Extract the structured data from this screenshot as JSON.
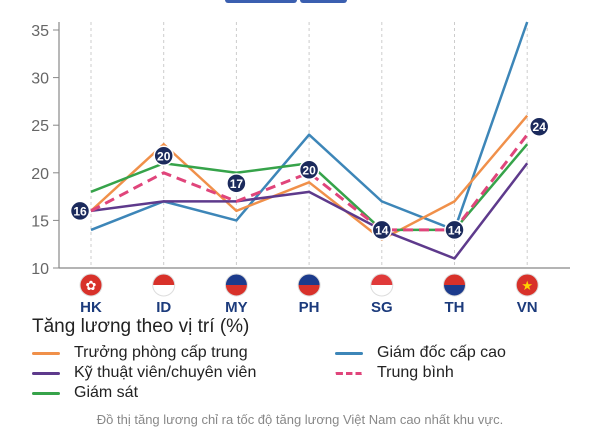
{
  "chart_data": {
    "type": "line",
    "categories": [
      "HK",
      "ID",
      "MY",
      "PH",
      "SG",
      "TH",
      "VN"
    ],
    "category_flags": [
      "hong-kong-flag-icon",
      "indonesia-flag-icon",
      "malaysia-flag-icon",
      "philippines-flag-icon",
      "singapore-flag-icon",
      "thailand-flag-icon",
      "vietnam-flag-icon"
    ],
    "ylim": [
      10,
      36
    ],
    "yticks": [
      10,
      15,
      20,
      25,
      30,
      35
    ],
    "grid": "vertical dashed",
    "legend_title": "Tăng lương theo vị trí (%)",
    "legend_placement": "bottom",
    "series": [
      {
        "name": "Trưởng phòng cấp trung",
        "color": "#f0904a",
        "style": "solid",
        "values": [
          16,
          23,
          16,
          19,
          13,
          17,
          26
        ]
      },
      {
        "name": "Giám đốc cấp cao",
        "color": "#3d86b8",
        "style": "solid",
        "values": [
          14,
          17,
          15,
          24,
          17,
          14,
          36
        ]
      },
      {
        "name": "Kỹ thuật viên/chuyên viên",
        "color": "#5e3a8c",
        "style": "solid",
        "values": [
          16,
          17,
          17,
          18,
          14,
          11,
          21
        ]
      },
      {
        "name": "Trung bình",
        "color": "#e0457b",
        "style": "dashed",
        "values": [
          16,
          20,
          17,
          20,
          14,
          14,
          24
        ],
        "labels": [
          "16",
          "20",
          "17",
          "20",
          "14",
          "14",
          "24"
        ]
      },
      {
        "name": "Giám sát",
        "color": "#36a34a",
        "style": "solid",
        "values": [
          18,
          21,
          20,
          21,
          14,
          14,
          23
        ]
      }
    ],
    "label_color": "#1b2a5c"
  },
  "caption": "Đồ thị tăng lương chỉ ra tốc độ tăng lương Việt Nam cao nhất khu vực."
}
